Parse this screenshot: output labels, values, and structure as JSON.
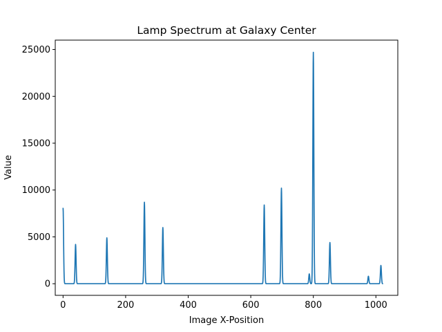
{
  "chart_data": {
    "type": "line",
    "title": "Lamp Spectrum at Galaxy Center",
    "xlabel": "Image X-Position",
    "ylabel": "Value",
    "xlim": [
      -25,
      1070
    ],
    "ylim": [
      -1240,
      26000
    ],
    "xticks": [
      0,
      200,
      400,
      600,
      800,
      1000
    ],
    "yticks": [
      0,
      5000,
      10000,
      15000,
      20000,
      25000
    ],
    "grid": false,
    "line_color": "#1f77b4",
    "baseline": 0,
    "peaks": [
      {
        "x": 0,
        "y": 8100
      },
      {
        "x": 40,
        "y": 4200
      },
      {
        "x": 140,
        "y": 4900
      },
      {
        "x": 260,
        "y": 8700
      },
      {
        "x": 319,
        "y": 6000
      },
      {
        "x": 643,
        "y": 8400
      },
      {
        "x": 698,
        "y": 10200
      },
      {
        "x": 787,
        "y": 1050
      },
      {
        "x": 800,
        "y": 24700
      },
      {
        "x": 853,
        "y": 4400
      },
      {
        "x": 976,
        "y": 800
      },
      {
        "x": 1016,
        "y": 1950
      }
    ],
    "x_range": [
      0,
      1023
    ]
  }
}
